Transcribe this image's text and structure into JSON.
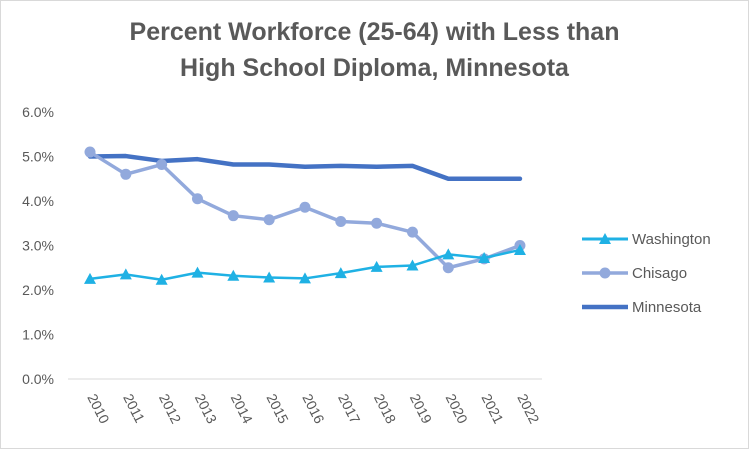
{
  "chart_data": {
    "type": "line",
    "title_lines": [
      "Percent Workforce (25-64) with Less than",
      "High School Diploma, Minnesota"
    ],
    "xlabel": "",
    "ylabel": "",
    "categories": [
      "2010",
      "2011",
      "2012",
      "2013",
      "2014",
      "2015",
      "2016",
      "2017",
      "2018",
      "2019",
      "2020",
      "2021",
      "2022"
    ],
    "ylim": [
      0,
      6
    ],
    "yticks": [
      "0.0%",
      "1.0%",
      "2.0%",
      "3.0%",
      "4.0%",
      "5.0%",
      "6.0%"
    ],
    "grid": false,
    "legend_position": "right",
    "series": [
      {
        "name": "Washington",
        "color": "#1fb1e4",
        "marker": "triangle",
        "values": [
          2.25,
          2.35,
          2.23,
          2.39,
          2.32,
          2.28,
          2.26,
          2.38,
          2.52,
          2.55,
          2.8,
          2.72,
          2.9
        ]
      },
      {
        "name": "Chisago",
        "color": "#92a9dc",
        "marker": "circle",
        "values": [
          5.1,
          4.6,
          4.82,
          4.05,
          3.67,
          3.58,
          3.86,
          3.54,
          3.5,
          3.3,
          2.5,
          2.7,
          3.0
        ]
      },
      {
        "name": "Minnesota",
        "color": "#4472c4",
        "marker": "none",
        "values": [
          5.0,
          5.01,
          4.9,
          4.94,
          4.82,
          4.82,
          4.77,
          4.79,
          4.77,
          4.79,
          4.5,
          4.5,
          4.5
        ]
      }
    ]
  }
}
